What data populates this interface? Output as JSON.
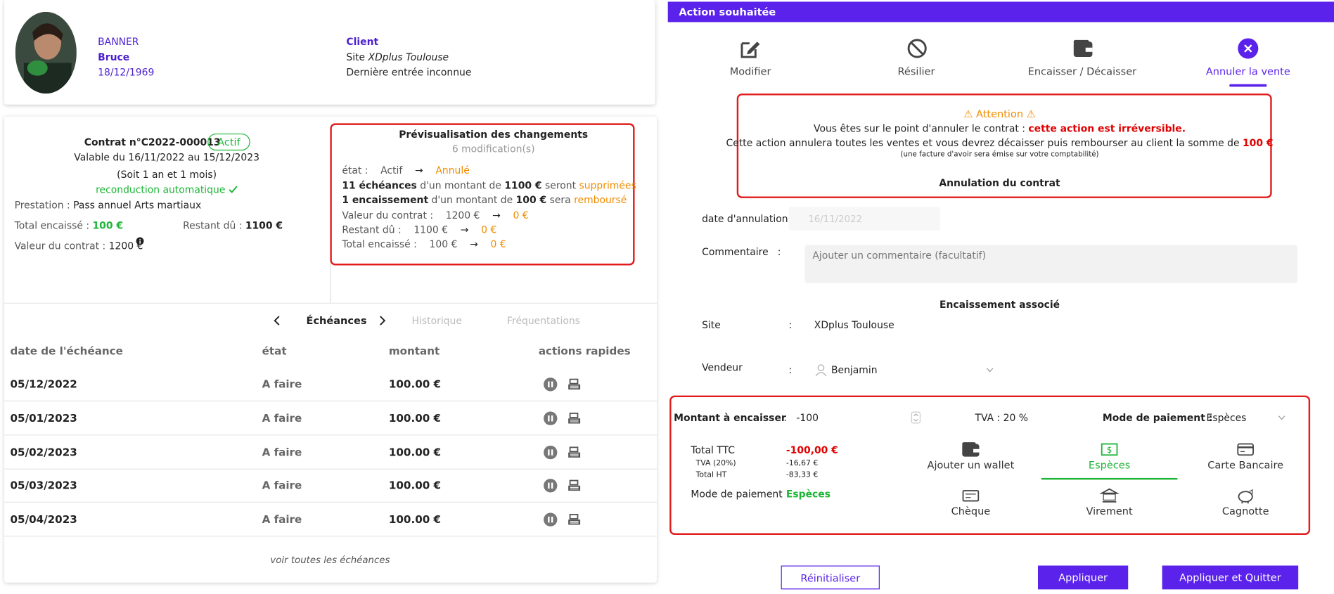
{
  "profile": {
    "last_name": "BANNER",
    "first_name": "Bruce",
    "birth_date": "18/12/1969",
    "client_label": "Client",
    "site_prefix": "Site",
    "site_name": "XDplus Toulouse",
    "last_entry": "Dernière entrée inconnue"
  },
  "contract": {
    "number": "Contrat n°C2022-000013",
    "status": "Actif",
    "validity": "Valable du 16/11/2022 au 15/12/2023",
    "duration": "(Soit 1 an et 1 mois)",
    "renewal": "reconduction automatique",
    "service_label": "Prestation :",
    "service": "Pass annuel Arts martiaux",
    "collected_label": "Total encaissé :",
    "collected": "100 €",
    "due_label": "Restant dû :",
    "due": "1100 €",
    "value_label": "Valeur du contrat :",
    "value": "1200 €"
  },
  "preview": {
    "title": "Prévisualisation des changements",
    "count": "6 modification(s)",
    "arrow": "→",
    "state": {
      "label": "état :",
      "from": "Actif",
      "to": "Annulé"
    },
    "deletions": {
      "count": "11 échéances",
      "text1": "d'un montant de",
      "amount": "1100 €",
      "text2": "seront",
      "action": "supprimées"
    },
    "refunds": {
      "count": "1 encaissement",
      "text1": "d'un montant de",
      "amount": "100 €",
      "text2": "sera",
      "action": "remboursé"
    },
    "changes": [
      {
        "label": "Valeur du contrat :",
        "from": "1200 €",
        "to": "0 €"
      },
      {
        "label": "Restant dû :",
        "from": "1100 €",
        "to": "0 €"
      },
      {
        "label": "Total encaissé :",
        "from": "100 €",
        "to": "0 €"
      }
    ]
  },
  "tabs": [
    "Échéances",
    "Historique",
    "Fréquentations"
  ],
  "table": {
    "headers": [
      "date de l'échéance",
      "état",
      "montant",
      "actions rapides"
    ],
    "rows": [
      [
        "05/12/2022",
        "A faire",
        "100.00 €"
      ],
      [
        "05/01/2023",
        "A faire",
        "100.00 €"
      ],
      [
        "05/02/2023",
        "A faire",
        "100.00 €"
      ],
      [
        "05/03/2023",
        "A faire",
        "100.00 €"
      ],
      [
        "05/04/2023",
        "A faire",
        "100.00 €"
      ]
    ],
    "footer": "voir toutes les échéances"
  },
  "panel": {
    "title": "Action souhaitée",
    "actions": [
      "Modifier",
      "Résilier",
      "Encaisser / Décaisser",
      "Annuler la vente"
    ],
    "warning": {
      "title": "Attention",
      "line1": "Vous êtes sur le point d'annuler le contrat :",
      "line1_strong": "cette action est irréversible.",
      "line2": "Cette action annulera toutes les ventes et vous devrez décaisser puis rembourser au client la somme de",
      "line2_amount": "100 €",
      "note": "(une facture d'avoir sera émise sur votre comptabilité)",
      "section": "Annulation du contrat"
    },
    "colon": ":",
    "form": {
      "date_label": "date d'annulation :",
      "date": "16/11/2022",
      "comment_label": "Commentaire",
      "comment_placeholder": "Ajouter un commentaire (facultatif)",
      "payment_section": "Encaissement associé",
      "site_label": "Site",
      "site": "XDplus Toulouse",
      "seller_label": "Vendeur",
      "seller": "Benjamin"
    },
    "payment": {
      "amount_label": "Montant à encaisser",
      "amount": "-100",
      "vat": "TVA : 20 %",
      "mode_label": "Mode de paiement :",
      "mode": "Espèces",
      "total_ttc_label": "Total TTC",
      "total_ttc": "-100,00 €",
      "vat_label": "TVA (20%)",
      "vat_amount": "-16,67 €",
      "total_ht_label": "Total HT",
      "total_ht": "-83,33 €",
      "summary_mode_label": "Mode de paiement",
      "summary_mode": "Espèces",
      "methods": [
        "Ajouter un wallet",
        "Espèces",
        "Carte Bancaire",
        "Chèque",
        "Virement",
        "Cagnotte"
      ]
    },
    "buttons": [
      "Réinitialiser",
      "Appliquer",
      "Appliquer et Quitter"
    ]
  }
}
